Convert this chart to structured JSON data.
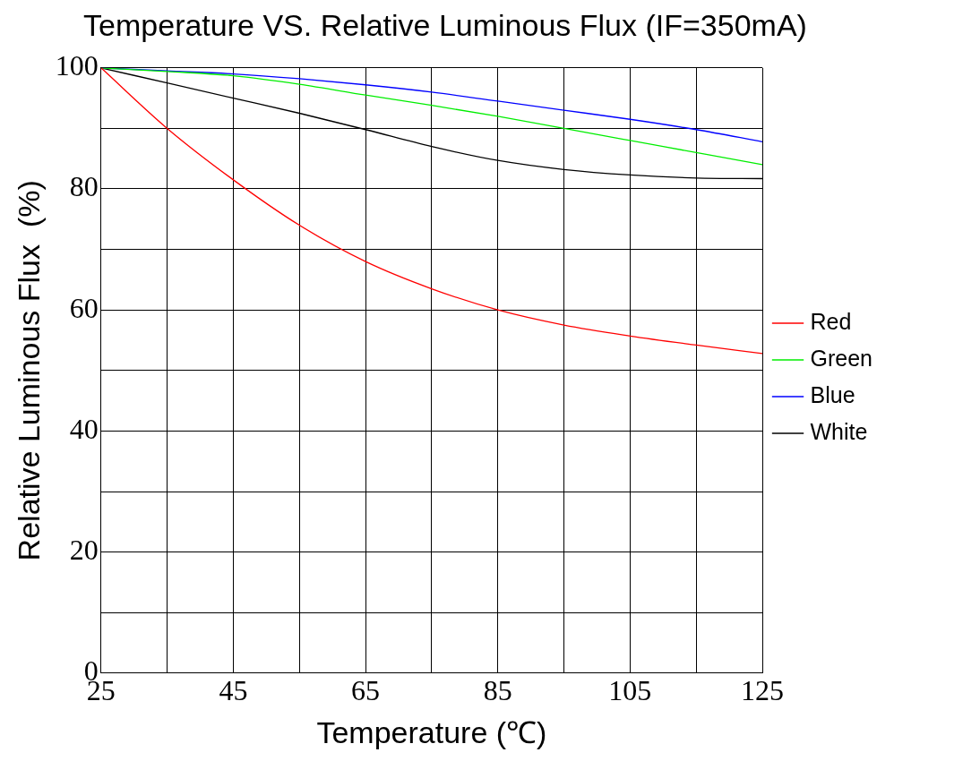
{
  "chart_data": {
    "type": "line",
    "title": "Temperature VS. Relative Luminous Flux (IF=350mA)",
    "xlabel": "Temperature (℃)",
    "ylabel": "Relative Luminous Flux  (%)",
    "x": [
      25,
      35,
      45,
      55,
      65,
      75,
      85,
      95,
      105,
      115,
      125
    ],
    "series": [
      {
        "name": "Red",
        "color": "#ff0000",
        "values": [
          100,
          90,
          81.5,
          74,
          68,
          63.5,
          60,
          57.5,
          55.7,
          54.2,
          52.8
        ]
      },
      {
        "name": "Green",
        "color": "#00ee00",
        "values": [
          100,
          99.4,
          98.7,
          97.3,
          95.5,
          93.8,
          92,
          90,
          88,
          86,
          84
        ]
      },
      {
        "name": "Blue",
        "color": "#0000ff",
        "values": [
          100,
          99.5,
          99,
          98.2,
          97.2,
          96,
          94.5,
          93,
          91.5,
          89.8,
          87.8
        ]
      },
      {
        "name": "White",
        "color": "#000000",
        "values": [
          100,
          97.5,
          95,
          92.5,
          89.8,
          87,
          84.7,
          83.2,
          82.3,
          81.8,
          81.7
        ]
      }
    ],
    "xlim": [
      25,
      125
    ],
    "xticks": [
      25,
      {
        "value": 35,
        "label": null
      },
      45,
      {
        "value": 55,
        "label": null
      },
      65,
      {
        "value": 75,
        "label": null
      },
      85,
      {
        "value": 95,
        "label": null
      },
      105,
      {
        "value": 115,
        "label": null
      },
      125
    ],
    "ylim": [
      0,
      100
    ],
    "yticks": [
      0,
      {
        "value": 10,
        "label": null
      },
      20,
      {
        "value": 30,
        "label": null
      },
      40,
      {
        "value": 50,
        "label": null
      },
      60,
      {
        "value": 70,
        "label": null
      },
      80,
      {
        "value": 90,
        "label": null
      },
      100
    ],
    "grid": true,
    "legend": "right",
    "marker": "none",
    "line_style": "solid"
  }
}
